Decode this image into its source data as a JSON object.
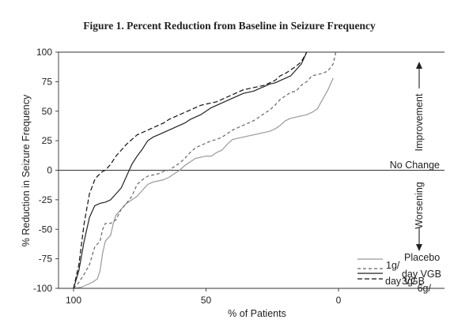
{
  "chart_data": {
    "type": "line",
    "title": "Figure 1. Percent Reduction from Baseline in Seizure Frequency",
    "xlabel": "% of Patients",
    "ylabel": "% Reduction in Seizure Frequency",
    "xlim": [
      100,
      0
    ],
    "ylim": [
      -100,
      100
    ],
    "x_reversed": true,
    "x_ticks": [
      100,
      50,
      0
    ],
    "x_tick_labels": [
      "100",
      "50",
      "0"
    ],
    "y_ticks": [
      100,
      75,
      50,
      25,
      0,
      -25,
      -50,
      -75,
      -100
    ],
    "y_tick_labels": [
      "100",
      "75",
      "50",
      "25",
      "0",
      "-25",
      "-50",
      "-75",
      "-100"
    ],
    "reference_lines": [
      0,
      100
    ],
    "annotations": {
      "zero_line_label": "No Change",
      "improvement_label": "Improvement",
      "worsening_label": "Worsening"
    },
    "legend": {
      "position": "bottom-right",
      "lines": [
        "Placebo",
        "1g/",
        "day VGB",
        "day VGB",
        "3g/",
        "6g/"
      ]
    },
    "series": [
      {
        "label_parts": [
          "Placebo"
        ],
        "color": "#999999",
        "dash": "",
        "x": [
          100,
          97,
          95,
          93,
          91,
          90,
          89,
          88,
          86,
          85,
          84,
          82,
          80,
          78,
          76,
          74,
          72,
          70,
          68,
          66,
          64,
          62,
          60,
          58,
          56,
          54,
          52,
          50,
          48,
          46,
          44,
          42,
          40,
          38,
          36,
          34,
          32,
          30,
          28,
          26,
          24,
          22,
          20,
          18,
          16,
          14,
          12,
          10,
          8,
          6,
          4,
          3,
          2
        ],
        "y": [
          -100,
          -99,
          -97,
          -95,
          -92,
          -85,
          -70,
          -60,
          -55,
          -45,
          -38,
          -33,
          -28,
          -25,
          -22,
          -17,
          -12,
          -10,
          -9,
          -8,
          -6,
          -3,
          0,
          4,
          7,
          10,
          11,
          12,
          12,
          15,
          17,
          22,
          26,
          27,
          28,
          29,
          30,
          31,
          32,
          33,
          35,
          38,
          42,
          44,
          45,
          46,
          47,
          49,
          52,
          60,
          68,
          73,
          78
        ]
      },
      {
        "label_parts": [
          "1g/",
          "day VGB"
        ],
        "color": "#666666",
        "dash": "4,3",
        "x": [
          100,
          98,
          96,
          94,
          92,
          90,
          89,
          88,
          86,
          84,
          82,
          80,
          78,
          76,
          74,
          72,
          70,
          68,
          66,
          64,
          62,
          60,
          58,
          56,
          54,
          52,
          50,
          48,
          46,
          44,
          42,
          40,
          38,
          36,
          34,
          32,
          30,
          28,
          26,
          24,
          22,
          20,
          18,
          16,
          14,
          12,
          10,
          8,
          6,
          4,
          2,
          1
        ],
        "y": [
          -100,
          -95,
          -88,
          -80,
          -65,
          -60,
          -50,
          -45,
          -45,
          -42,
          -33,
          -28,
          -22,
          -12,
          -8,
          -5,
          -4,
          -3,
          -1,
          0,
          3,
          6,
          10,
          15,
          19,
          21,
          23,
          25,
          26,
          28,
          31,
          34,
          36,
          38,
          40,
          42,
          45,
          48,
          51,
          55,
          60,
          63,
          66,
          67,
          72,
          75,
          80,
          81,
          82,
          84,
          90,
          100
        ]
      },
      {
        "label_parts": [
          "3g/",
          "day VGB"
        ],
        "color": "#222222",
        "dash": "",
        "x": [
          100,
          98,
          96,
          94,
          92,
          90,
          88,
          86,
          84,
          82,
          80,
          78,
          76,
          74,
          72,
          70,
          68,
          66,
          64,
          62,
          60,
          58,
          56,
          54,
          52,
          50,
          48,
          46,
          44,
          42,
          40,
          38,
          36,
          34,
          32,
          30,
          28,
          26,
          24,
          22,
          20,
          18,
          16,
          14,
          12
        ],
        "y": [
          -100,
          -85,
          -60,
          -40,
          -30,
          -28,
          -27,
          -25,
          -20,
          -15,
          -5,
          5,
          12,
          18,
          25,
          28,
          30,
          32,
          34,
          36,
          38,
          40,
          43,
          45,
          47,
          50,
          53,
          55,
          57,
          59,
          61,
          63,
          65,
          66,
          67,
          69,
          71,
          73,
          74,
          76,
          78,
          80,
          85,
          90,
          100
        ]
      },
      {
        "label_parts": [
          "6g/",
          "day VGB"
        ],
        "color": "#111111",
        "dash": "6,3",
        "x": [
          100,
          98,
          96,
          94,
          92,
          91,
          90,
          89,
          88,
          86,
          84,
          82,
          80,
          78,
          76,
          74,
          72,
          70,
          68,
          66,
          64,
          62,
          60,
          58,
          56,
          54,
          52,
          50,
          48,
          46,
          44,
          42,
          40,
          38,
          36,
          34,
          32,
          30,
          28,
          26,
          24,
          22,
          20,
          18,
          16,
          14,
          12
        ],
        "y": [
          -100,
          -80,
          -45,
          -20,
          -8,
          -5,
          -3,
          -1,
          0,
          5,
          12,
          17,
          22,
          26,
          30,
          32,
          34,
          36,
          38,
          40,
          43,
          45,
          47,
          49,
          51,
          53,
          55,
          56,
          57,
          58,
          60,
          62,
          64,
          66,
          68,
          69,
          70,
          71,
          72,
          74,
          76,
          80,
          82,
          85,
          88,
          92,
          100
        ]
      }
    ]
  }
}
